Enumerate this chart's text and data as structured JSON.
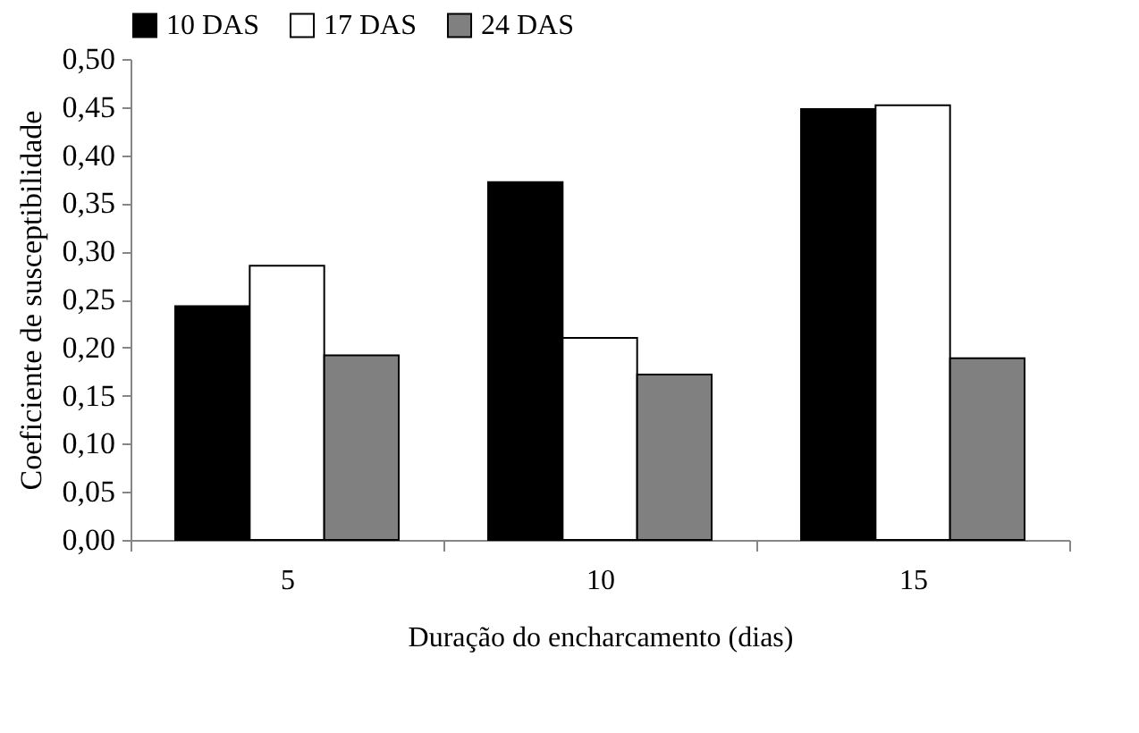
{
  "chart_data": {
    "type": "bar",
    "xlabel": "Duração do encharcamento (dias)",
    "ylabel": "Coeficiente de susceptibilidade",
    "categories": [
      "5",
      "10",
      "15"
    ],
    "series": [
      {
        "name": "10 DAS",
        "color": "#000000",
        "values": [
          0.243,
          0.372,
          0.448
        ]
      },
      {
        "name": "17 DAS",
        "color": "#ffffff",
        "values": [
          0.285,
          0.21,
          0.452
        ]
      },
      {
        "name": "24 DAS",
        "color": "#808080",
        "values": [
          0.192,
          0.172,
          0.189
        ]
      }
    ],
    "ylim": [
      0,
      0.5
    ],
    "yticks": [
      {
        "value": 0,
        "label": "0,00"
      },
      {
        "value": 0.05,
        "label": "0,05"
      },
      {
        "value": 0.1,
        "label": "0,10"
      },
      {
        "value": 0.15,
        "label": "0,15"
      },
      {
        "value": 0.2,
        "label": "0,20"
      },
      {
        "value": 0.25,
        "label": "0,25"
      },
      {
        "value": 0.3,
        "label": "0,30"
      },
      {
        "value": 0.35,
        "label": "0,35"
      },
      {
        "value": 0.4,
        "label": "0,40"
      },
      {
        "value": 0.45,
        "label": "0,45"
      },
      {
        "value": 0.5,
        "label": "0,50"
      }
    ],
    "grid": false,
    "legend": "top"
  }
}
